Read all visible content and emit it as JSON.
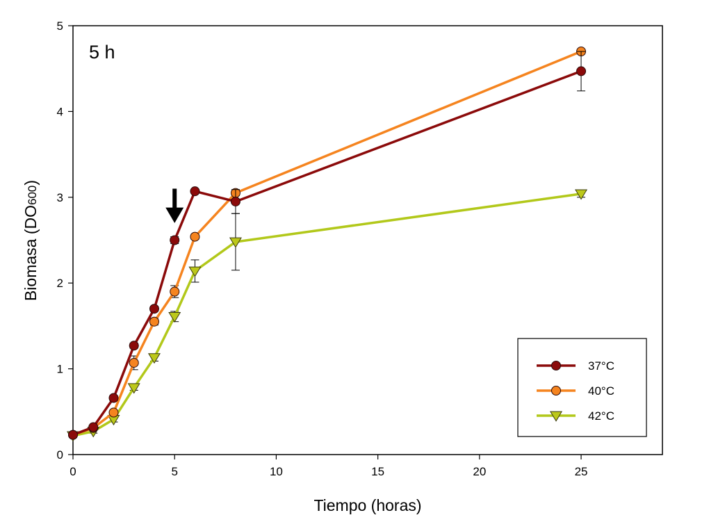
{
  "chart_data": {
    "type": "line",
    "annotation": "5 h",
    "xlabel": "Tiempo (horas)",
    "ylabel_main": "Biomasa (DO",
    "ylabel_sub": "600",
    "ylabel_end": ")",
    "xlim": [
      0,
      29
    ],
    "ylim": [
      0,
      5
    ],
    "xticks": [
      0,
      5,
      10,
      15,
      20,
      25
    ],
    "yticks": [
      0,
      1,
      2,
      3,
      4,
      5
    ],
    "arrow_at": {
      "x": 5,
      "y_top": 3.1,
      "y_bottom": 2.7
    },
    "grid": false,
    "legend_position": "bottom-right",
    "series": [
      {
        "name": "37°C",
        "marker": "circle",
        "line_color": "#8b0a0a",
        "marker_fill": "#8b0a0a",
        "x": [
          0,
          1,
          2,
          3,
          4,
          5,
          6,
          8,
          25
        ],
        "y": [
          0.23,
          0.32,
          0.66,
          1.27,
          1.7,
          2.5,
          3.07,
          2.95,
          4.47
        ],
        "err": [
          0.02,
          0.02,
          0.03,
          0.03,
          0.03,
          0.04,
          0.02,
          0.14,
          0.23
        ]
      },
      {
        "name": "40°C",
        "marker": "circle",
        "line_color": "#f5841f",
        "marker_fill": "#f5841f",
        "x": [
          0,
          1,
          2,
          3,
          4,
          5,
          6,
          8,
          25
        ],
        "y": [
          0.23,
          0.31,
          0.49,
          1.07,
          1.55,
          1.9,
          2.54,
          3.05,
          4.7
        ],
        "err": [
          0.02,
          0.02,
          0.03,
          0.08,
          0.04,
          0.07,
          0.03,
          0.03,
          0.03
        ]
      },
      {
        "name": "42°C",
        "marker": "triangle-down",
        "line_color": "#b2c81a",
        "marker_fill": "#bcc81a",
        "x": [
          0,
          1,
          2,
          3,
          4,
          5,
          6,
          8,
          25
        ],
        "y": [
          0.22,
          0.27,
          0.41,
          0.78,
          1.13,
          1.61,
          2.14,
          2.48,
          3.04
        ],
        "err": [
          0.02,
          0.02,
          0.03,
          0.03,
          0.04,
          0.06,
          0.13,
          0.33,
          0.04
        ]
      }
    ]
  }
}
